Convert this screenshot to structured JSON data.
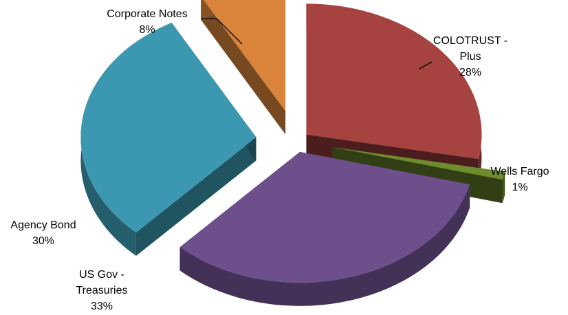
{
  "chart_data": {
    "type": "pie",
    "title": "",
    "style": "3d-exploded",
    "legend": "none",
    "slices": [
      {
        "label": "COLOTRUST - Plus",
        "label_lines": [
          "COLOTRUST -",
          "Plus"
        ],
        "value": 28,
        "value_label": "28%",
        "color": "#A64340"
      },
      {
        "label": "Wells Fargo",
        "label_lines": [
          "Wells Fargo"
        ],
        "value": 1,
        "value_label": "1%",
        "color": "#6E8B2E"
      },
      {
        "label": "US Gov - Treasuries",
        "label_lines": [
          "US Gov -",
          "Treasuries"
        ],
        "value": 33,
        "value_label": "33%",
        "color": "#6D4F8C"
      },
      {
        "label": "Agency Bond",
        "label_lines": [
          "Agency Bond"
        ],
        "value": 30,
        "value_label": "30%",
        "color": "#3C98B0"
      },
      {
        "label": "Corporate Notes",
        "label_lines": [
          "Corporate Notes"
        ],
        "value": 8,
        "value_label": "8%",
        "color": "#D9843A"
      }
    ]
  }
}
